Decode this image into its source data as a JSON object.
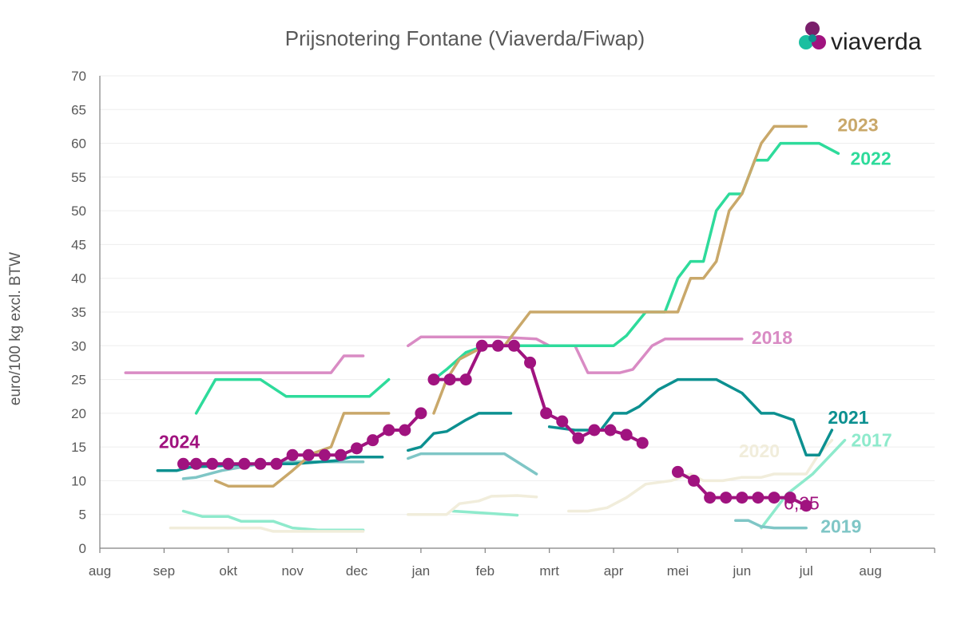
{
  "brand": {
    "name": "viaverda",
    "colors": [
      "#7a1f6b",
      "#a0137f",
      "#1bbfa0",
      "#0e8f8f"
    ]
  },
  "chart_data": {
    "type": "line",
    "title": "Prijsnotering Fontane (Viaverda/Fiwap)",
    "ylabel": "euro/100 kg excl. BTW",
    "xlabel": "",
    "ylim": [
      0,
      70
    ],
    "yticks": [
      "0",
      "5",
      "10",
      "15",
      "20",
      "25",
      "30",
      "35",
      "40",
      "45",
      "50",
      "55",
      "60",
      "65",
      "70"
    ],
    "xlim": [
      0,
      13
    ],
    "xticks": [
      "aug",
      "sep",
      "okt",
      "nov",
      "dec",
      "jan",
      "feb",
      "mrt",
      "apr",
      "mei",
      "jun",
      "jul",
      "aug"
    ],
    "grid": true,
    "annotation": {
      "text": "6,25",
      "series": "2024",
      "x": 10.5,
      "y": 6.3
    },
    "series": [
      {
        "name": "2018",
        "color": "#d98bc4",
        "label_at": [
          10.0,
          31.0
        ],
        "segments": [
          [
            [
              0.4,
              26
            ],
            [
              3.6,
              26
            ],
            [
              3.8,
              28.5
            ],
            [
              4.1,
              28.5
            ]
          ],
          [
            [
              4.8,
              30
            ],
            [
              5.0,
              31.3
            ],
            [
              6.2,
              31.3
            ],
            [
              6.8,
              31.0
            ],
            [
              7.0,
              30.0
            ],
            [
              7.4,
              30.0
            ],
            [
              7.6,
              26.0
            ],
            [
              8.1,
              26.0
            ],
            [
              8.3,
              26.5
            ],
            [
              8.6,
              30.0
            ],
            [
              8.8,
              31.0
            ],
            [
              10.0,
              31.0
            ]
          ]
        ]
      },
      {
        "name": "2017",
        "color": "#8eeacc",
        "label_at": [
          11.6,
          16.0
        ],
        "segments": [
          [
            [
              1.3,
              5.5
            ],
            [
              1.6,
              4.7
            ],
            [
              2.0,
              4.7
            ],
            [
              2.2,
              4.0
            ],
            [
              2.7,
              4.0
            ],
            [
              3.0,
              3.0
            ],
            [
              3.4,
              2.7
            ],
            [
              4.1,
              2.7
            ]
          ],
          [
            [
              5.5,
              5.5
            ],
            [
              6.0,
              5.2
            ],
            [
              6.5,
              4.9
            ]
          ],
          [
            [
              10.3,
              3.0
            ],
            [
              10.7,
              8.0
            ],
            [
              11.1,
              11.0
            ],
            [
              11.6,
              16.0
            ]
          ]
        ]
      },
      {
        "name": "2019",
        "color": "#7fc6c6",
        "label_at": [
          11.0,
          3.0
        ],
        "segments": [
          [
            [
              1.3,
              10.3
            ],
            [
              1.5,
              10.5
            ],
            [
              1.9,
              11.5
            ],
            [
              2.5,
              12.5
            ],
            [
              3.0,
              12.8
            ],
            [
              4.1,
              12.8
            ]
          ],
          [
            [
              4.8,
              13.3
            ],
            [
              5.0,
              14.0
            ],
            [
              6.3,
              14.0
            ],
            [
              6.8,
              11.0
            ]
          ],
          [
            [
              9.9,
              4.1
            ],
            [
              10.1,
              4.1
            ],
            [
              10.3,
              3.2
            ],
            [
              10.5,
              3.0
            ],
            [
              10.8,
              3.0
            ],
            [
              11.0,
              3.0
            ]
          ]
        ]
      },
      {
        "name": "2020",
        "color": "#f1eddb",
        "label_at": [
          10.1,
          13.5
        ],
        "segments": [
          [
            [
              1.1,
              3.0
            ],
            [
              2.5,
              3.0
            ],
            [
              2.7,
              2.5
            ],
            [
              4.1,
              2.5
            ]
          ],
          [
            [
              4.8,
              5.0
            ],
            [
              5.4,
              5.0
            ],
            [
              5.6,
              6.6
            ],
            [
              5.9,
              7.0
            ],
            [
              6.1,
              7.7
            ],
            [
              6.5,
              7.8
            ],
            [
              6.8,
              7.6
            ]
          ],
          [
            [
              7.3,
              5.5
            ],
            [
              7.6,
              5.5
            ],
            [
              7.9,
              6.0
            ],
            [
              8.2,
              7.5
            ],
            [
              8.5,
              9.5
            ],
            [
              8.9,
              10.0
            ],
            [
              9.2,
              11.0
            ],
            [
              9.4,
              10.0
            ],
            [
              9.7,
              10.0
            ],
            [
              10.0,
              10.5
            ],
            [
              10.3,
              10.5
            ],
            [
              10.5,
              11.0
            ],
            [
              11.0,
              11.0
            ],
            [
              11.2,
              14.0
            ],
            [
              11.4,
              16.0
            ]
          ]
        ]
      },
      {
        "name": "2021",
        "color": "#0c9090",
        "label_at": [
          11.3,
          17.5
        ],
        "segments": [
          [
            [
              0.9,
              11.5
            ],
            [
              1.2,
              11.5
            ],
            [
              1.4,
              12.0
            ],
            [
              2.5,
              12.5
            ],
            [
              3.0,
              12.5
            ],
            [
              3.3,
              12.7
            ],
            [
              3.7,
              13.0
            ],
            [
              3.9,
              13.5
            ],
            [
              4.4,
              13.5
            ]
          ],
          [
            [
              4.8,
              14.5
            ],
            [
              5.0,
              15.0
            ],
            [
              5.2,
              17.0
            ],
            [
              5.4,
              17.3
            ],
            [
              5.7,
              19.0
            ],
            [
              5.9,
              20.0
            ],
            [
              6.4,
              20.0
            ]
          ],
          [
            [
              7.0,
              18.0
            ],
            [
              7.4,
              17.5
            ],
            [
              7.6,
              17.5
            ],
            [
              7.8,
              17.5
            ],
            [
              8.0,
              20.0
            ],
            [
              8.2,
              20.0
            ],
            [
              8.4,
              21.0
            ],
            [
              8.7,
              23.5
            ],
            [
              9.0,
              25.0
            ],
            [
              9.6,
              25.0
            ],
            [
              10.0,
              23.0
            ],
            [
              10.3,
              20.0
            ],
            [
              10.5,
              20.0
            ],
            [
              10.8,
              19.0
            ],
            [
              11.0,
              13.8
            ],
            [
              11.2,
              13.8
            ],
            [
              11.4,
              17.5
            ]
          ]
        ]
      },
      {
        "name": "2022",
        "color": "#2edb9b",
        "label_at": [
          11.6,
          58.5
        ],
        "segments": [
          [
            [
              1.5,
              20.0
            ],
            [
              1.8,
              25.0
            ],
            [
              2.5,
              25.0
            ],
            [
              2.9,
              22.5
            ],
            [
              4.1,
              22.5
            ],
            [
              4.2,
              22.5
            ],
            [
              4.5,
              25.0
            ]
          ],
          [
            [
              5.2,
              25.0
            ],
            [
              5.4,
              26.5
            ],
            [
              5.7,
              29.0
            ],
            [
              6.0,
              30.0
            ],
            [
              8.0,
              30.0
            ],
            [
              8.2,
              31.5
            ],
            [
              8.5,
              35.0
            ],
            [
              8.8,
              35.0
            ],
            [
              9.0,
              40.0
            ],
            [
              9.2,
              42.5
            ],
            [
              9.4,
              42.5
            ],
            [
              9.6,
              50.0
            ],
            [
              9.8,
              52.5
            ],
            [
              10.0,
              52.5
            ],
            [
              10.2,
              57.5
            ],
            [
              10.4,
              57.5
            ],
            [
              10.6,
              60.0
            ],
            [
              11.2,
              60.0
            ],
            [
              11.5,
              58.5
            ]
          ]
        ]
      },
      {
        "name": "2023",
        "color": "#c9a86a",
        "label_at": [
          11.3,
          62.5
        ],
        "segments": [
          [
            [
              1.8,
              10.0
            ],
            [
              2.0,
              9.2
            ],
            [
              2.7,
              9.2
            ],
            [
              3.0,
              11.5
            ],
            [
              3.3,
              14.0
            ],
            [
              3.6,
              15.0
            ],
            [
              3.8,
              20.0
            ],
            [
              4.5,
              20.0
            ]
          ],
          [
            [
              5.2,
              20.0
            ],
            [
              5.4,
              25.0
            ],
            [
              5.6,
              28.0
            ],
            [
              6.0,
              30.0
            ],
            [
              6.3,
              30.0
            ],
            [
              6.5,
              32.5
            ],
            [
              6.7,
              35.0
            ],
            [
              8.8,
              35.0
            ],
            [
              9.0,
              35.0
            ],
            [
              9.2,
              40.0
            ],
            [
              9.4,
              40.0
            ],
            [
              9.6,
              42.5
            ],
            [
              9.8,
              50.0
            ],
            [
              10.0,
              52.5
            ],
            [
              10.2,
              57.5
            ],
            [
              10.3,
              60.0
            ],
            [
              10.5,
              62.5
            ],
            [
              11.0,
              62.5
            ]
          ]
        ]
      },
      {
        "name": "2024",
        "color": "#a0137f",
        "label_at": [
          1.3,
          12.5
        ],
        "markers": true,
        "segments": [
          [
            [
              1.3,
              12.5
            ],
            [
              1.5,
              12.5
            ],
            [
              1.75,
              12.5
            ],
            [
              2.0,
              12.5
            ],
            [
              2.25,
              12.5
            ],
            [
              2.5,
              12.5
            ],
            [
              2.75,
              12.5
            ],
            [
              3.0,
              13.8
            ],
            [
              3.25,
              13.8
            ],
            [
              3.5,
              13.8
            ],
            [
              3.75,
              13.8
            ],
            [
              4.0,
              14.8
            ],
            [
              4.25,
              16.0
            ],
            [
              4.5,
              17.5
            ],
            [
              4.75,
              17.5
            ],
            [
              5.0,
              20.0
            ]
          ],
          [
            [
              5.2,
              25.0
            ],
            [
              5.45,
              25.0
            ],
            [
              5.7,
              25.0
            ],
            [
              5.95,
              30.0
            ],
            [
              6.2,
              30.0
            ],
            [
              6.45,
              30.0
            ],
            [
              6.7,
              27.5
            ],
            [
              6.95,
              20.0
            ],
            [
              7.2,
              18.8
            ],
            [
              7.45,
              16.3
            ],
            [
              7.7,
              17.5
            ],
            [
              7.95,
              17.5
            ],
            [
              8.2,
              16.8
            ],
            [
              8.45,
              15.6
            ]
          ],
          [
            [
              9.0,
              11.3
            ],
            [
              9.25,
              10.0
            ],
            [
              9.5,
              7.5
            ],
            [
              9.75,
              7.5
            ],
            [
              10.0,
              7.5
            ],
            [
              10.25,
              7.5
            ],
            [
              10.5,
              7.5
            ],
            [
              10.75,
              7.5
            ],
            [
              11.0,
              6.3
            ]
          ]
        ]
      }
    ]
  }
}
